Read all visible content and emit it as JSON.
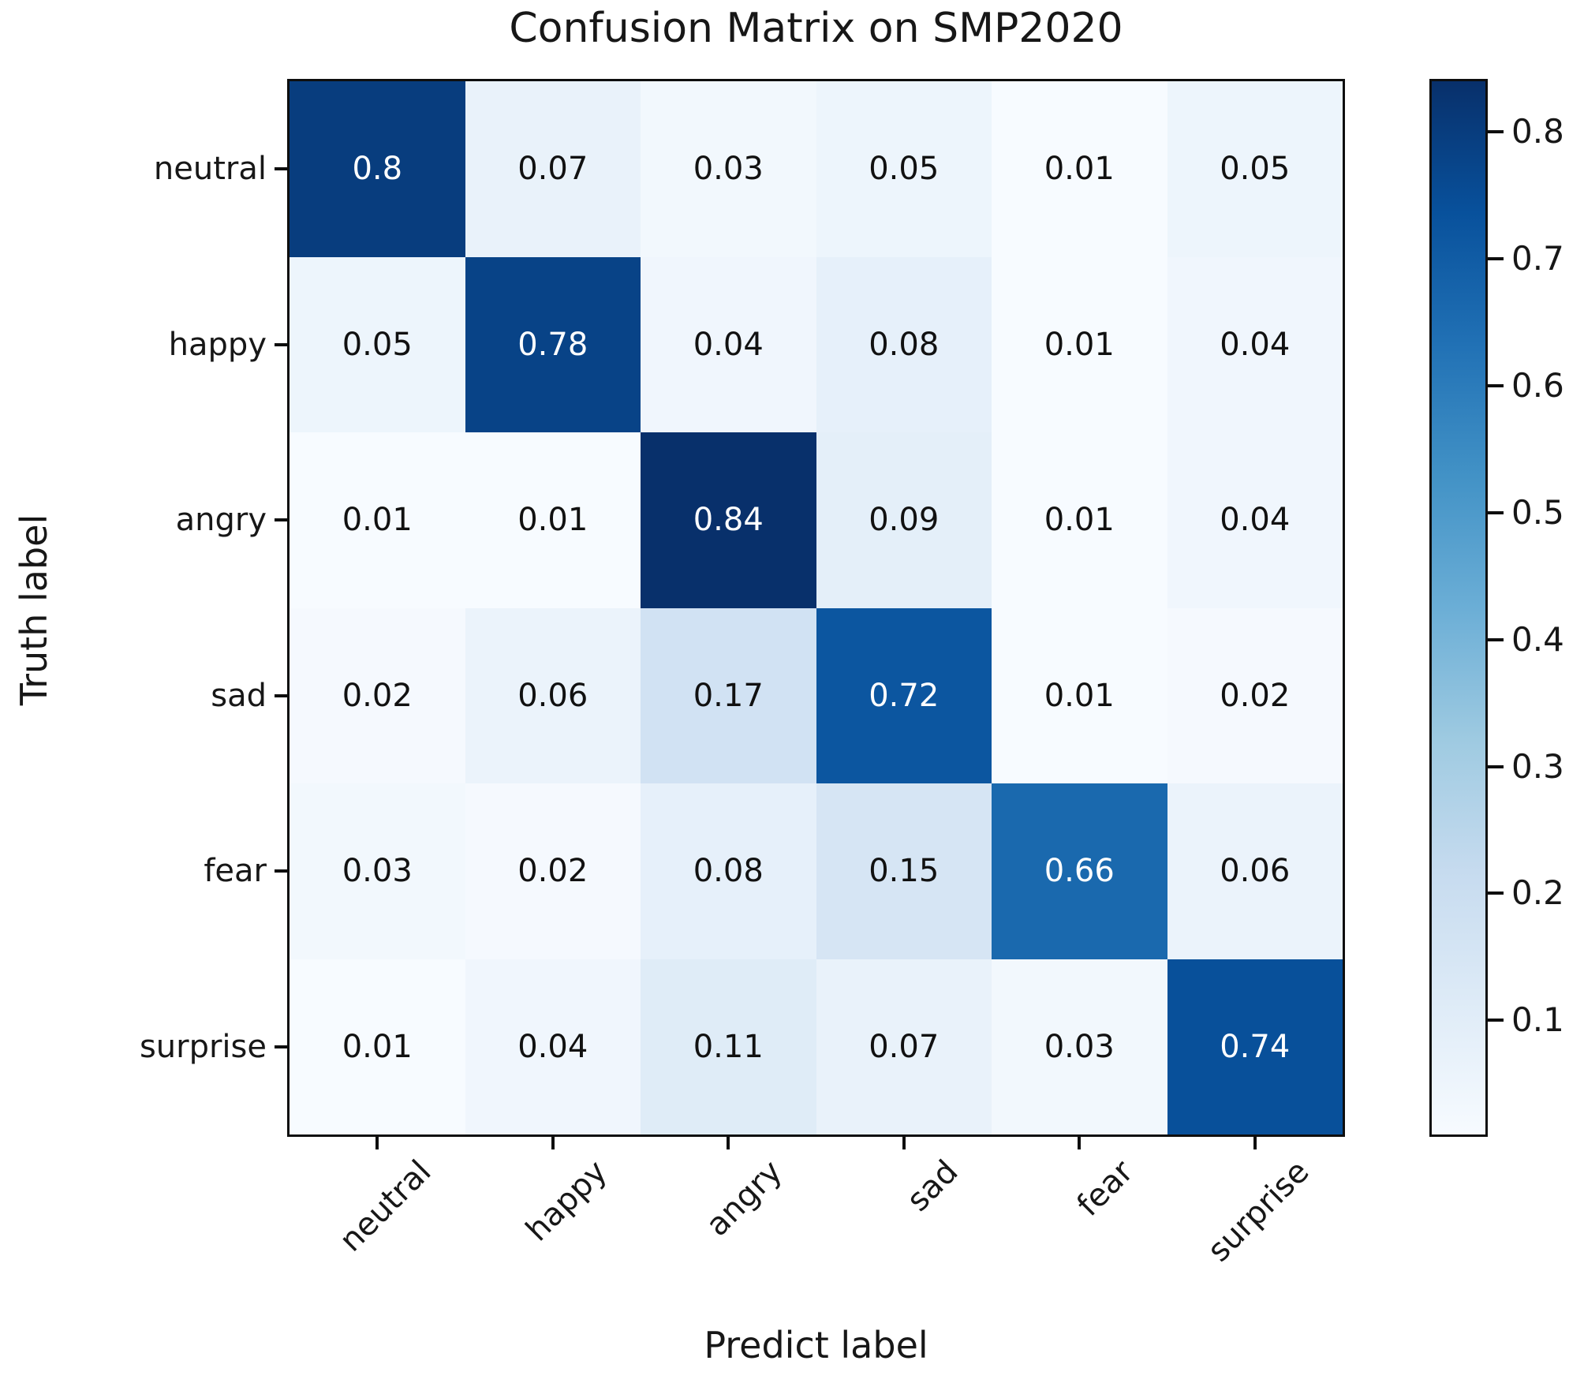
{
  "title": "Confusion Matrix on SMP2020",
  "chart_data": {
    "type": "heatmap",
    "title": "Confusion Matrix on SMP2020",
    "xlabel": "Predict label",
    "ylabel": "Truth label",
    "x_categories": [
      "neutral",
      "happy",
      "angry",
      "sad",
      "fear",
      "surprise"
    ],
    "y_categories": [
      "neutral",
      "happy",
      "angry",
      "sad",
      "fear",
      "surprise"
    ],
    "matrix": [
      [
        0.8,
        0.07,
        0.03,
        0.05,
        0.01,
        0.05
      ],
      [
        0.05,
        0.78,
        0.04,
        0.08,
        0.01,
        0.04
      ],
      [
        0.01,
        0.01,
        0.84,
        0.09,
        0.01,
        0.04
      ],
      [
        0.02,
        0.06,
        0.17,
        0.72,
        0.01,
        0.02
      ],
      [
        0.03,
        0.02,
        0.08,
        0.15,
        0.66,
        0.06
      ],
      [
        0.01,
        0.04,
        0.11,
        0.07,
        0.03,
        0.74
      ]
    ],
    "colormap": "Blues",
    "vmin": 0.01,
    "vmax": 0.84,
    "colorbar_ticks": [
      0.8,
      0.7,
      0.6,
      0.5,
      0.4,
      0.3,
      0.2,
      0.1
    ],
    "colorbar_position": "right",
    "grid": false
  },
  "colors": {
    "background": "#ffffff",
    "cmap_low": "#f7fbff",
    "cmap_high": "#08306b",
    "annotation_dark": "#111111",
    "annotation_light": "#ffffff",
    "axis": "#0e0e0e"
  }
}
